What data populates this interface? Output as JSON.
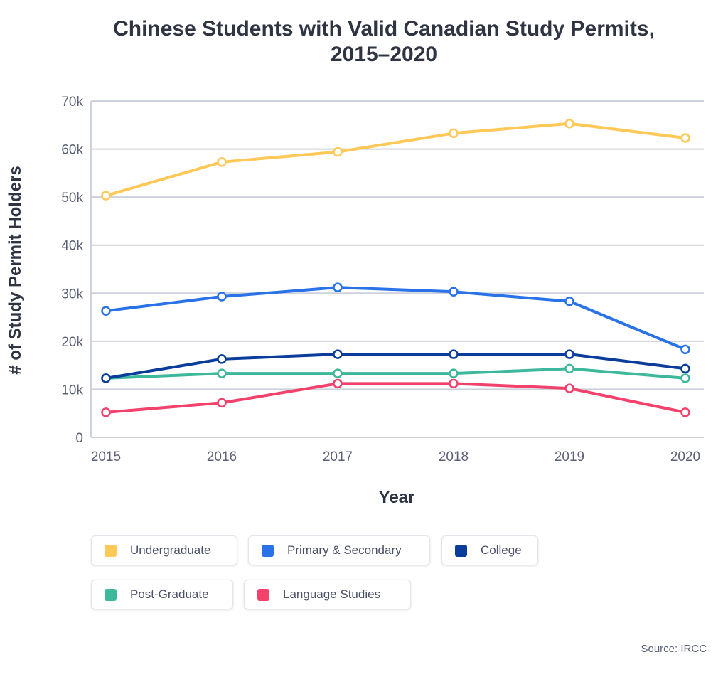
{
  "chart_data": {
    "type": "line",
    "title": "Chinese Students with Valid Canadian Study Permits, 2015–2020",
    "title_lines": [
      "Chinese Students with Valid Canadian Study Permits,",
      "2015–2020"
    ],
    "xlabel": "Year",
    "ylabel": "# of Study Permit Holders",
    "x": [
      "2015",
      "2016",
      "2017",
      "2018",
      "2019",
      "2020"
    ],
    "ylim": [
      0,
      70000
    ],
    "yticks": [
      0,
      10000,
      20000,
      30000,
      40000,
      50000,
      60000,
      70000
    ],
    "ytick_labels": [
      "0",
      "10k",
      "20k",
      "30k",
      "40k",
      "50k",
      "60k",
      "70k"
    ],
    "grid": true,
    "legend_position": "bottom",
    "series": [
      {
        "name": "Undergraduate",
        "color": "#ffc857",
        "values": [
          50300,
          57300,
          59400,
          63300,
          65300,
          62300
        ]
      },
      {
        "name": "Primary & Secondary",
        "color": "#2a72e8",
        "values": [
          26300,
          29300,
          31200,
          30300,
          28300,
          18300
        ]
      },
      {
        "name": "College",
        "color": "#0a3d9b",
        "values": [
          12300,
          16300,
          17300,
          17300,
          17300,
          14300
        ]
      },
      {
        "name": "Post-Graduate",
        "color": "#3db89a",
        "values": [
          12300,
          13300,
          13300,
          13300,
          14300,
          12300
        ]
      },
      {
        "name": "Language Studies",
        "color": "#f2416b",
        "values": [
          5200,
          7200,
          11200,
          11200,
          10200,
          5200
        ]
      }
    ],
    "source": "Source: IRCC"
  }
}
